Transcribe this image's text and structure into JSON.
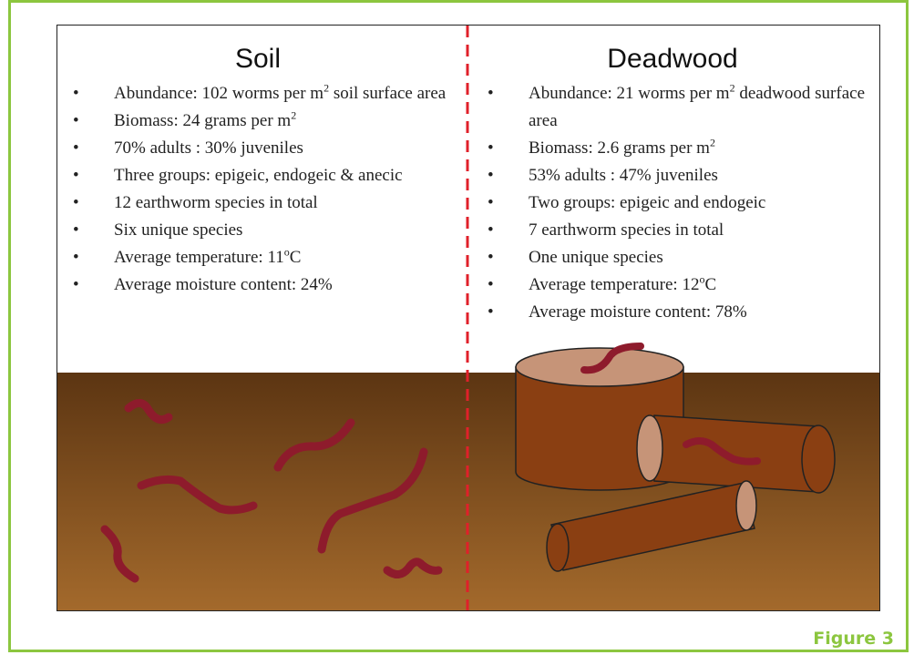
{
  "panels": [
    {
      "title": "Soil",
      "items": [
        {
          "before": "Abundance: 102 worms per m",
          "sup": "2",
          "after": " soil surface area"
        },
        {
          "before": "Biomass: 24 grams per m",
          "sup": "2"
        },
        "70% adults : 30% juveniles",
        "Three groups: epigeic, endogeic & anecic",
        "12 earthworm species in total",
        "Six unique species",
        {
          "before": "Average temperature: 11",
          "sup": "o",
          "after": "C"
        },
        "Average moisture content: 24%"
      ]
    },
    {
      "title": "Deadwood",
      "items": [
        {
          "before": "Abundance: 21 worms per m",
          "sup": "2",
          "after": " deadwood surface area"
        },
        {
          "before": "Biomass: 2.6 grams per m",
          "sup": "2"
        },
        "53% adults : 47% juveniles",
        "Two groups: epigeic and endogeic",
        "7 earthworm species in total",
        "One unique species",
        {
          "before": "Average temperature: 12",
          "sup": "o",
          "after": "C"
        },
        "Average moisture content: 78%"
      ]
    }
  ],
  "figure_label": "Figure 3"
}
